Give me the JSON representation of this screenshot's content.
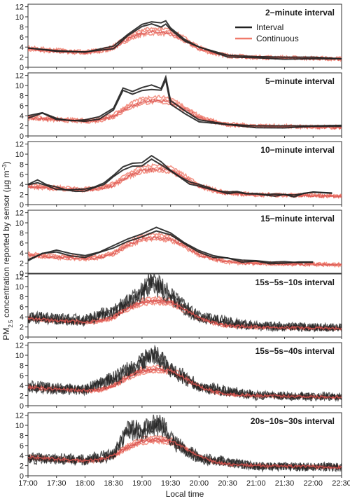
{
  "chart_data": {
    "type": "line",
    "ylabel": "PM2.5 concentration reported by sensor (µg m−3)",
    "ylabel_parts": {
      "prefix": "PM",
      "subscript": "2.5",
      "middle": " concentration reported by sensor (µg m",
      "superscript": "−3",
      "suffix": ")"
    },
    "xlabel": "Local time",
    "x_tick_labels": [
      "17:00",
      "17:30",
      "18:00",
      "18:30",
      "19:00",
      "19:30",
      "20:00",
      "20:30",
      "21:00",
      "21:30",
      "22:00",
      "22:30"
    ],
    "x_range": [
      "17:00",
      "22:30"
    ],
    "y_tick_labels": [
      "0",
      "2",
      "4",
      "6",
      "8",
      "10",
      "12"
    ],
    "ylim": [
      0,
      12.5
    ],
    "legend": {
      "placement": "top-right of first panel",
      "items": [
        {
          "name": "Interval",
          "color": "#222222"
        },
        {
          "name": "Continuous",
          "color": "#f07a6a"
        }
      ]
    },
    "colors": {
      "interval": "#222222",
      "continuous": "#f07a6a",
      "continuous_dark": "#d9534f"
    },
    "baseline_profile": {
      "x": [
        "17:00",
        "17:30",
        "18:00",
        "18:15",
        "18:30",
        "18:45",
        "19:00",
        "19:15",
        "19:30",
        "19:45",
        "20:00",
        "20:15",
        "20:30",
        "21:00",
        "21:30",
        "22:00",
        "22:30"
      ],
      "y": [
        3.7,
        3.3,
        3.0,
        3.2,
        4.0,
        5.8,
        7.0,
        7.3,
        7.0,
        5.5,
        3.8,
        2.9,
        2.3,
        2.0,
        1.9,
        1.8,
        1.7
      ]
    },
    "panels": [
      {
        "title": "2−minute interval",
        "interval_peak": 9.2,
        "interval_points": {
          "x": [
            "17:00",
            "17:30",
            "18:00",
            "18:30",
            "18:45",
            "19:00",
            "19:10",
            "19:20",
            "19:25",
            "19:30",
            "19:45",
            "20:00",
            "20:30",
            "21:00",
            "21:30",
            "22:00",
            "22:30"
          ],
          "y": [
            3.8,
            3.3,
            3.0,
            4.2,
            6.5,
            8.5,
            9.0,
            8.8,
            9.2,
            7.8,
            5.5,
            4.0,
            2.4,
            2.1,
            2.0,
            2.0,
            1.7
          ]
        }
      },
      {
        "title": "5−minute interval",
        "interval_peak": 11.7,
        "interval_points": {
          "x": [
            "17:00",
            "17:15",
            "17:30",
            "17:45",
            "18:00",
            "18:15",
            "18:30",
            "18:40",
            "18:50",
            "19:00",
            "19:10",
            "19:20",
            "19:25",
            "19:30",
            "19:45",
            "20:00",
            "20:30",
            "21:00",
            "21:30",
            "22:00",
            "22:30"
          ],
          "y": [
            4.0,
            4.6,
            3.5,
            3.0,
            3.2,
            3.8,
            5.5,
            9.5,
            8.8,
            9.6,
            10.1,
            9.4,
            11.7,
            7.0,
            5.0,
            3.2,
            2.3,
            2.0,
            2.0,
            2.0,
            2.1
          ]
        }
      },
      {
        "title": "10−minute interval",
        "interval_peak": 9.7,
        "interval_points": {
          "x": [
            "17:00",
            "17:10",
            "17:20",
            "17:30",
            "17:40",
            "17:50",
            "18:00",
            "18:10",
            "18:20",
            "18:30",
            "18:40",
            "18:50",
            "19:00",
            "19:10",
            "19:20",
            "19:30",
            "19:40",
            "19:50",
            "20:00",
            "20:10",
            "20:20",
            "20:30",
            "20:40",
            "20:50",
            "21:00",
            "21:10",
            "21:20",
            "21:30",
            "21:40",
            "21:50",
            "22:00",
            "22:10",
            "22:20"
          ],
          "y": [
            4.0,
            4.9,
            3.9,
            3.5,
            2.9,
            3.0,
            3.1,
            3.5,
            4.3,
            5.8,
            7.5,
            8.2,
            8.3,
            9.7,
            8.5,
            6.8,
            5.5,
            4.5,
            4.0,
            3.4,
            2.7,
            2.5,
            2.6,
            2.2,
            2.2,
            2.0,
            2.1,
            2.0,
            1.9,
            2.2,
            2.5,
            2.4,
            2.3
          ]
        }
      },
      {
        "title": "15−minute interval",
        "interval_peak": 9.1,
        "interval_points": {
          "x": [
            "17:00",
            "17:15",
            "17:30",
            "17:45",
            "18:00",
            "18:15",
            "18:30",
            "18:45",
            "19:00",
            "19:15",
            "19:30",
            "19:45",
            "20:00",
            "20:15",
            "20:30",
            "20:45",
            "21:00",
            "21:15",
            "21:30",
            "21:45",
            "22:00"
          ],
          "y": [
            2.7,
            3.9,
            4.6,
            3.9,
            3.5,
            4.2,
            5.5,
            6.8,
            7.8,
            9.1,
            8.0,
            6.0,
            4.5,
            3.5,
            3.0,
            2.6,
            2.5,
            2.2,
            2.3,
            2.1,
            2.2
          ]
        }
      },
      {
        "title": "15s−5s−10s interval",
        "interval_peak": 11.9,
        "interval_points": {
          "x": [
            "17:00",
            "18:00",
            "18:30",
            "19:00",
            "19:10",
            "19:20",
            "19:30",
            "20:00",
            "21:00",
            "22:00",
            "22:30"
          ],
          "y": [
            4.2,
            3.5,
            5.5,
            9.5,
            11.9,
            10.5,
            8.5,
            4.2,
            2.3,
            2.1,
            2.0
          ]
        }
      },
      {
        "title": "15s−5s−40s interval",
        "interval_peak": 11.0,
        "interval_points": {
          "x": [
            "17:00",
            "18:00",
            "18:30",
            "19:00",
            "19:10",
            "19:20",
            "19:30",
            "20:00",
            "21:00",
            "22:00",
            "22:30"
          ],
          "y": [
            4.0,
            3.3,
            5.8,
            9.0,
            11.0,
            10.0,
            8.0,
            4.0,
            2.2,
            2.0,
            2.0
          ]
        }
      },
      {
        "title": "20s−10s−30s interval",
        "interval_peak": 10.9,
        "interval_points": {
          "x": [
            "17:00",
            "18:00",
            "18:30",
            "18:45",
            "19:00",
            "19:15",
            "19:25",
            "19:30",
            "20:00",
            "21:00",
            "22:00",
            "22:30"
          ],
          "y": [
            3.8,
            3.3,
            4.5,
            9.8,
            9.5,
            10.9,
            10.5,
            7.5,
            3.8,
            2.0,
            1.9,
            1.8
          ]
        }
      }
    ]
  }
}
